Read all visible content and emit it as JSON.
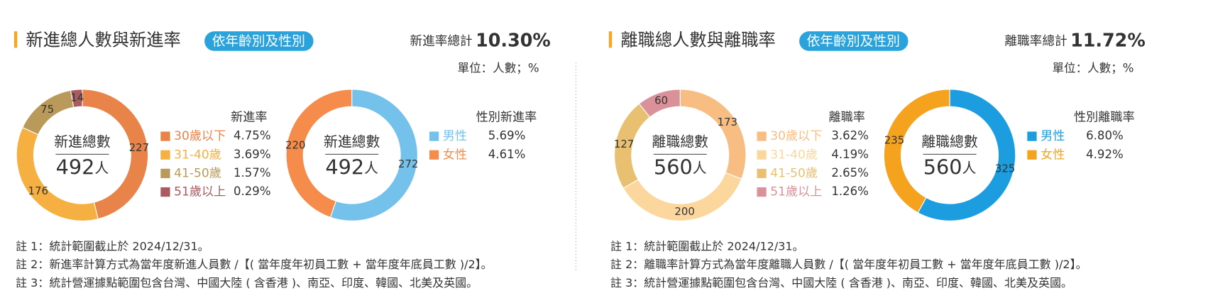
{
  "panels": [
    {
      "title": "新進總人數與新進率",
      "tag": "依年齡別及性別",
      "total_label": "新進率總計",
      "total_value": "10.30%",
      "unit": "單位：人數；%",
      "notes": [
        "註 1：統計範圍截止於 2024/12/31。",
        "註 2：新進率計算方式為當年度新進人員數 /【( 當年度年初員工數 + 當年度年底員工數 )/2】。",
        "註 3：統計營運據點範圍包含台灣、中國大陸 ( 含香港 )、南亞、印度、韓國、北美及英國。"
      ]
    },
    {
      "title": "離職總人數與離職率",
      "tag": "依年齡別及性別",
      "total_label": "離職率總計",
      "total_value": "11.72%",
      "unit": "單位：人數；%",
      "notes": [
        "註 1：統計範圍截止於 2024/12/31。",
        "註 2：離職率計算方式為當年度離職人員數 /【( 當年度年初員工數 + 當年度年底員工數 )/2】。",
        "註 3：統計營運據點範圍包含台灣、中國大陸 ( 含香港 )、南亞、印度、韓國、北美及英國。"
      ]
    }
  ],
  "chart_data": [
    {
      "type": "donut",
      "center_label": "新進總數",
      "center_total": 492,
      "center_unit": "人",
      "legend_title": "新進率",
      "categories": [
        "30歲以下",
        "31-40歲",
        "41-50歲",
        "51歲以上"
      ],
      "values": [
        227,
        176,
        75,
        14
      ],
      "colors": [
        "#e8834a",
        "#f5b041",
        "#b99a5b",
        "#a95b5f"
      ],
      "rates": [
        "4.75%",
        "3.69%",
        "1.57%",
        "0.29%"
      ]
    },
    {
      "type": "donut",
      "center_label": "新進總數",
      "center_total": 492,
      "center_unit": "人",
      "legend_title": "性別新進率",
      "categories": [
        "男性",
        "女性"
      ],
      "values": [
        272,
        220
      ],
      "colors": [
        "#74c2ec",
        "#f58c4c"
      ],
      "rates": [
        "5.69%",
        "4.61%"
      ]
    },
    {
      "type": "donut",
      "center_label": "離職總數",
      "center_total": 560,
      "center_unit": "人",
      "legend_title": "離職率",
      "categories": [
        "30歲以下",
        "31-40歲",
        "41-50歲",
        "51歲以上"
      ],
      "values": [
        173,
        200,
        127,
        60
      ],
      "colors": [
        "#f8bd82",
        "#fbd79d",
        "#e9c071",
        "#da9199"
      ],
      "rates": [
        "3.62%",
        "4.19%",
        "2.65%",
        "1.26%"
      ]
    },
    {
      "type": "donut",
      "center_label": "離職總數",
      "center_total": 560,
      "center_unit": "人",
      "legend_title": "性別離職率",
      "categories": [
        "男性",
        "女性"
      ],
      "values": [
        325,
        235
      ],
      "colors": [
        "#1b9de0",
        "#f5a21f"
      ],
      "rates": [
        "6.80%",
        "4.92%"
      ]
    }
  ]
}
